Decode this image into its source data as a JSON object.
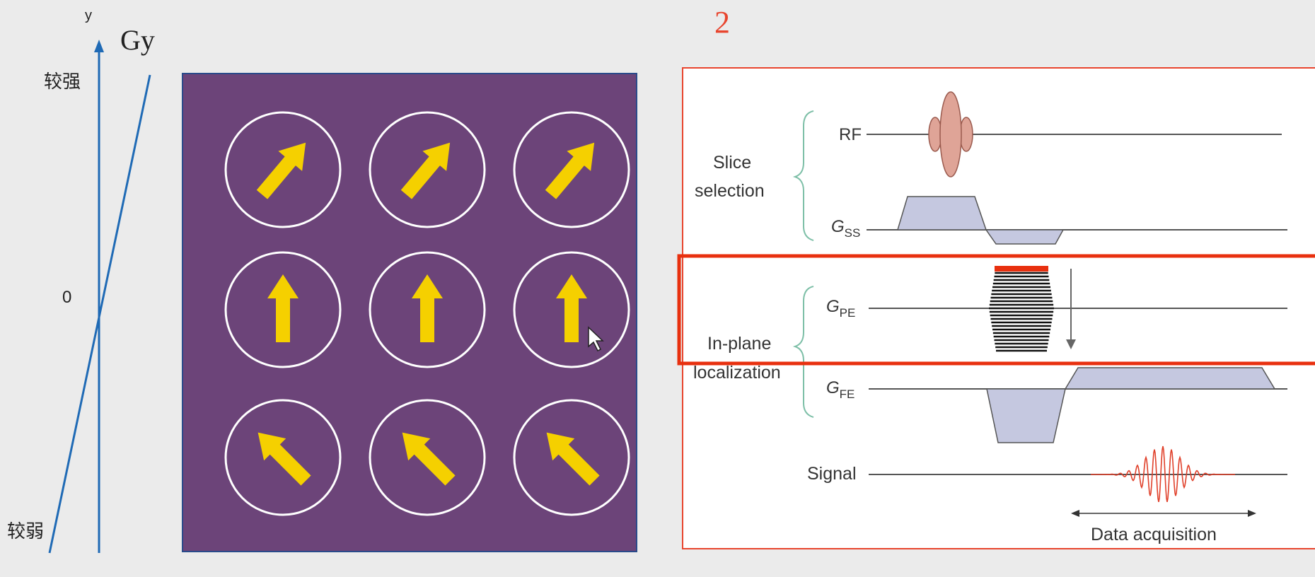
{
  "axis": {
    "y_label": "y",
    "gradient_label": "Gy",
    "strong_label": "较强",
    "zero_label": "0",
    "weak_label": "较弱"
  },
  "slide_number": "2",
  "spin_grid": {
    "background_color": "#6c4479",
    "arrow_color": "#f5d000",
    "rows": [
      {
        "direction": "up-right"
      },
      {
        "direction": "up"
      },
      {
        "direction": "up-left"
      }
    ]
  },
  "sequence": {
    "slice_selection_label_line1": "Slice",
    "slice_selection_label_line2": "selection",
    "rf_label": "RF",
    "gss_label": "G",
    "gss_sub": "SS",
    "gpe_label": "G",
    "gpe_sub": "PE",
    "inplane_label_line1": "In-plane",
    "inplane_label_line2": "localization",
    "gfe_label": "G",
    "gfe_sub": "FE",
    "signal_label": "Signal",
    "data_acq_label": "Data acquisition"
  },
  "colors": {
    "axis_blue": "#1f6ab5",
    "frame_red": "#e8452e",
    "highlight_red": "#e8300f",
    "gradient_fill": "#c5c8e0",
    "rf_fill": "#dfa497",
    "signal_red": "#e0402a",
    "brace_green": "#7dbfa7"
  }
}
